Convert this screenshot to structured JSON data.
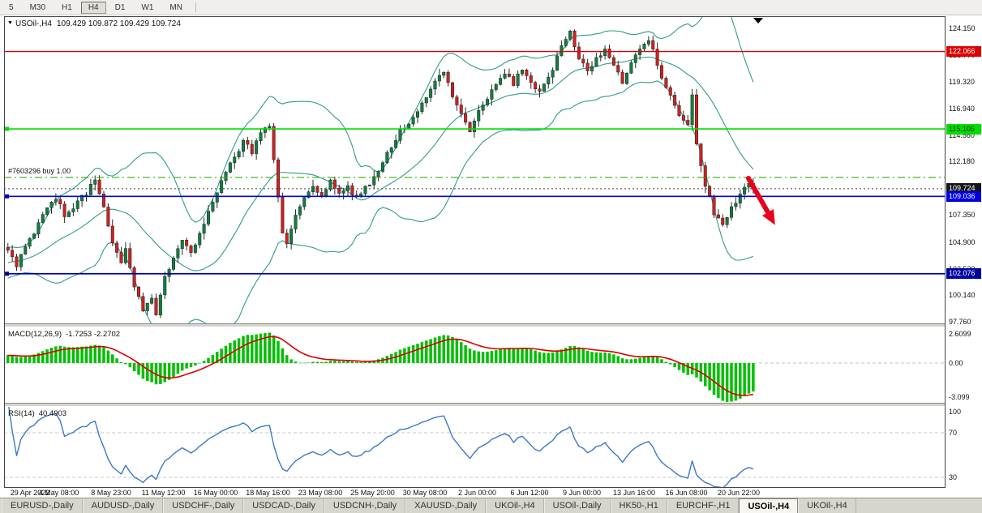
{
  "toolbar": {
    "timeframes": [
      "5",
      "M30",
      "H1",
      "H4",
      "D1",
      "W1",
      "MN"
    ],
    "active": "H4"
  },
  "chart": {
    "title": "USOil-,H4",
    "ohlc": "109.429 109.872 109.429 109.724",
    "position_label": "#7603296 buy 1.00",
    "seed": 20220621,
    "bars": 172,
    "bar_step": 5.375,
    "up_color": "#0e8040",
    "down_color": "#d02020",
    "wick_color": "#2a2a2a",
    "band_color": "#2e9e86",
    "arrow_color": "#e8001c",
    "hlines": [
      {
        "price": 122.066,
        "color": "#e00000",
        "width": 1.3,
        "dash": null,
        "handle": false,
        "name": "resistance-line-red"
      },
      {
        "price": 115.106,
        "color": "#00dd00",
        "width": 1.6,
        "dash": null,
        "handle": true,
        "name": "hline-green"
      },
      {
        "price": 110.74,
        "color": "#2db200",
        "width": 1.2,
        "dash": "9 4 2 4",
        "handle": false,
        "name": "buy-position-line"
      },
      {
        "price": 109.724,
        "color": "#404040",
        "width": 1.0,
        "dash": "2 3",
        "handle": false,
        "name": "current-price-line"
      },
      {
        "price": 109.036,
        "color": "#0000e0",
        "width": 1.6,
        "dash": null,
        "handle": true,
        "name": "hline-blue"
      },
      {
        "price": 102.076,
        "color": "#0000a0",
        "width": 1.8,
        "dash": null,
        "handle": true,
        "name": "support-line-navy"
      }
    ],
    "price_path": [
      [
        0,
        104.3
      ],
      [
        2,
        102.8
      ],
      [
        4,
        104.6
      ],
      [
        6,
        105.8
      ],
      [
        8,
        107.2
      ],
      [
        11,
        108.9
      ],
      [
        13,
        107.3
      ],
      [
        15,
        107.9
      ],
      [
        18,
        109.4
      ],
      [
        20,
        110.4
      ],
      [
        22,
        108.2
      ],
      [
        24,
        104.6
      ],
      [
        26,
        103.2
      ],
      [
        27,
        104.2
      ],
      [
        29,
        100.8
      ],
      [
        31,
        98.8
      ],
      [
        33,
        100.0
      ],
      [
        34,
        98.3
      ],
      [
        36,
        101.6
      ],
      [
        38,
        103.6
      ],
      [
        40,
        104.9
      ],
      [
        42,
        103.9
      ],
      [
        44,
        105.6
      ],
      [
        46,
        107.6
      ],
      [
        48,
        109.6
      ],
      [
        50,
        111.1
      ],
      [
        52,
        112.6
      ],
      [
        54,
        113.9
      ],
      [
        56,
        113.1
      ],
      [
        58,
        114.9
      ],
      [
        60,
        115.4
      ],
      [
        61,
        112.2
      ],
      [
        63,
        105.9
      ],
      [
        64,
        104.9
      ],
      [
        66,
        107.6
      ],
      [
        68,
        109.1
      ],
      [
        70,
        109.9
      ],
      [
        72,
        109.1
      ],
      [
        74,
        110.3
      ],
      [
        76,
        109.3
      ],
      [
        78,
        109.9
      ],
      [
        80,
        108.9
      ],
      [
        82,
        109.9
      ],
      [
        84,
        110.6
      ],
      [
        86,
        111.9
      ],
      [
        88,
        113.6
      ],
      [
        90,
        114.9
      ],
      [
        92,
        115.4
      ],
      [
        94,
        116.6
      ],
      [
        96,
        117.9
      ],
      [
        98,
        119.3
      ],
      [
        100,
        120.3
      ],
      [
        101,
        119.1
      ],
      [
        103,
        117.3
      ],
      [
        106,
        114.9
      ],
      [
        108,
        116.6
      ],
      [
        110,
        117.9
      ],
      [
        112,
        119.1
      ],
      [
        114,
        120.1
      ],
      [
        116,
        119.1
      ],
      [
        118,
        120.6
      ],
      [
        120,
        119.1
      ],
      [
        122,
        118.4
      ],
      [
        124,
        119.6
      ],
      [
        126,
        121.6
      ],
      [
        128,
        123.3
      ],
      [
        129,
        123.7
      ],
      [
        131,
        121.6
      ],
      [
        133,
        120.1
      ],
      [
        135,
        121.4
      ],
      [
        137,
        122.1
      ],
      [
        139,
        120.6
      ],
      [
        141,
        119.4
      ],
      [
        143,
        121.1
      ],
      [
        145,
        122.4
      ],
      [
        147,
        122.9
      ],
      [
        148,
        122.1
      ],
      [
        150,
        119.9
      ],
      [
        152,
        118.1
      ],
      [
        154,
        116.4
      ],
      [
        156,
        115.6
      ],
      [
        157,
        118.4
      ],
      [
        158,
        113.6
      ],
      [
        160,
        110.1
      ],
      [
        162,
        107.6
      ],
      [
        164,
        106.3
      ],
      [
        166,
        107.9
      ],
      [
        168,
        109.3
      ],
      [
        170,
        110.3
      ],
      [
        171,
        109.724
      ]
    ]
  },
  "axis": {
    "price_plain": [
      "124.150",
      "121.770",
      "119.320",
      "116.940",
      "114.560",
      "112.180",
      "107.350",
      "104.900",
      "102.520",
      "100.140",
      "97.760"
    ],
    "price_badges": [
      {
        "text": "122.066",
        "bg": "#e00000",
        "fg": "#ffffff"
      },
      {
        "text": "115.106",
        "bg": "#00dd00",
        "fg": "#003300"
      },
      {
        "text": "109.724",
        "bg": "#151515",
        "fg": "#ffffff"
      },
      {
        "text": "109.036",
        "bg": "#0000e0",
        "fg": "#ffffff"
      },
      {
        "text": "102.076",
        "bg": "#0000a0",
        "fg": "#ffffff"
      }
    ],
    "macd_scale": [
      {
        "text": "2.6099",
        "v": 2.6099
      },
      {
        "text": "0.00",
        "v": 0
      },
      {
        "text": "-3.099",
        "v": -3.099
      }
    ],
    "rsi_scale": [
      {
        "text": "100",
        "v": 100
      },
      {
        "text": "70",
        "v": 70
      },
      {
        "text": "30",
        "v": 30
      }
    ]
  },
  "macd": {
    "label": "MACD(12,26,9)",
    "values": "-1.7253 -2.2702",
    "hist_color": "#00c000",
    "signal_color": "#dd0000"
  },
  "rsi": {
    "label": "RSI(14)",
    "value": "40.4903",
    "line_color": "#3c78c8",
    "levels": [
      70,
      30
    ]
  },
  "time_axis": [
    {
      "text": "29 Apr 2022",
      "i": 0
    },
    {
      "text": "4 May 08:00",
      "i": 12
    },
    {
      "text": "8 May 23:00",
      "i": 24
    },
    {
      "text": "11 May 12:00",
      "i": 36
    },
    {
      "text": "16 May 00:00",
      "i": 48
    },
    {
      "text": "18 May 16:00",
      "i": 60
    },
    {
      "text": "23 May 08:00",
      "i": 72
    },
    {
      "text": "25 May 20:00",
      "i": 84
    },
    {
      "text": "30 May 08:00",
      "i": 96
    },
    {
      "text": "2 Jun 00:00",
      "i": 108
    },
    {
      "text": "6 Jun 12:00",
      "i": 120
    },
    {
      "text": "9 Jun 00:00",
      "i": 132
    },
    {
      "text": "13 Jun 16:00",
      "i": 144
    },
    {
      "text": "16 Jun 08:00",
      "i": 156
    },
    {
      "text": "20 Jun 22:00",
      "i": 168
    }
  ],
  "tabs": {
    "active_index": 10,
    "items": [
      "EURUSD-,Daily",
      "AUDUSD-,Daily",
      "USDCHF-,Daily",
      "USDCAD-,Daily",
      "USDCNH-,Daily",
      "XAUUSD-,Daily",
      "UKOil-,H4",
      "USOil-,Daily",
      "HK50-,H1",
      "EURCHF-,H1",
      "USOil-,H4",
      "UKOil-,H4"
    ]
  }
}
